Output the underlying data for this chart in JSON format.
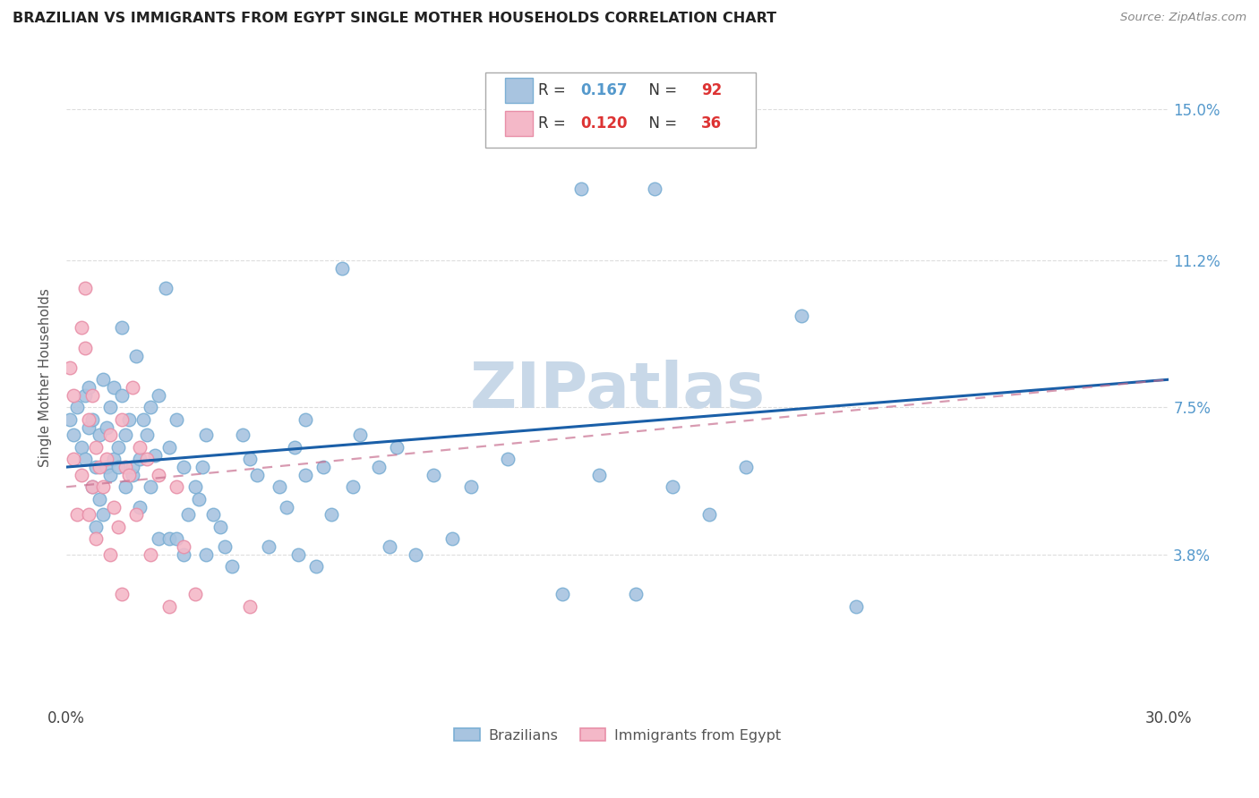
{
  "title": "BRAZILIAN VS IMMIGRANTS FROM EGYPT SINGLE MOTHER HOUSEHOLDS CORRELATION CHART",
  "source": "Source: ZipAtlas.com",
  "ylabel": "Single Mother Households",
  "ytick_labels": [
    "15.0%",
    "11.2%",
    "7.5%",
    "3.8%"
  ],
  "ytick_values": [
    0.15,
    0.112,
    0.075,
    0.038
  ],
  "xmin": 0.0,
  "xmax": 0.3,
  "ymin": 0.0,
  "ymax": 0.165,
  "R_blue": 0.167,
  "N_blue": 92,
  "R_pink": 0.12,
  "N_pink": 36,
  "blue_color": "#a8c4e0",
  "blue_edge": "#7bafd4",
  "pink_color": "#f4b8c8",
  "pink_edge": "#e88fa8",
  "line_blue": "#1a5fa8",
  "line_pink": "#c87090",
  "watermark_color": "#c8d8e8",
  "title_color": "#222222",
  "source_color": "#888888",
  "background_color": "#ffffff",
  "grid_color": "#dddddd",
  "right_label_color": "#5599cc",
  "legend_R_color_blue": "#5599cc",
  "legend_N_color_blue": "#dd3333",
  "legend_R_color_pink": "#dd3333",
  "legend_N_color_pink": "#dd3333",
  "blue_line_y0": 0.06,
  "blue_line_y1": 0.082,
  "pink_line_y0": 0.055,
  "pink_line_y1": 0.082,
  "blue_points": [
    [
      0.001,
      0.072
    ],
    [
      0.002,
      0.068
    ],
    [
      0.003,
      0.075
    ],
    [
      0.004,
      0.065
    ],
    [
      0.005,
      0.078
    ],
    [
      0.005,
      0.062
    ],
    [
      0.006,
      0.08
    ],
    [
      0.006,
      0.07
    ],
    [
      0.007,
      0.055
    ],
    [
      0.007,
      0.072
    ],
    [
      0.008,
      0.06
    ],
    [
      0.008,
      0.045
    ],
    [
      0.009,
      0.052
    ],
    [
      0.009,
      0.068
    ],
    [
      0.01,
      0.048
    ],
    [
      0.01,
      0.082
    ],
    [
      0.011,
      0.06
    ],
    [
      0.011,
      0.07
    ],
    [
      0.012,
      0.058
    ],
    [
      0.012,
      0.075
    ],
    [
      0.013,
      0.062
    ],
    [
      0.013,
      0.08
    ],
    [
      0.014,
      0.065
    ],
    [
      0.014,
      0.06
    ],
    [
      0.015,
      0.078
    ],
    [
      0.015,
      0.095
    ],
    [
      0.016,
      0.055
    ],
    [
      0.016,
      0.068
    ],
    [
      0.017,
      0.072
    ],
    [
      0.018,
      0.058
    ],
    [
      0.018,
      0.06
    ],
    [
      0.019,
      0.088
    ],
    [
      0.02,
      0.062
    ],
    [
      0.02,
      0.05
    ],
    [
      0.021,
      0.072
    ],
    [
      0.022,
      0.068
    ],
    [
      0.023,
      0.075
    ],
    [
      0.023,
      0.055
    ],
    [
      0.024,
      0.063
    ],
    [
      0.025,
      0.042
    ],
    [
      0.025,
      0.078
    ],
    [
      0.027,
      0.105
    ],
    [
      0.028,
      0.065
    ],
    [
      0.028,
      0.042
    ],
    [
      0.03,
      0.072
    ],
    [
      0.03,
      0.042
    ],
    [
      0.032,
      0.06
    ],
    [
      0.032,
      0.038
    ],
    [
      0.033,
      0.048
    ],
    [
      0.035,
      0.055
    ],
    [
      0.036,
      0.052
    ],
    [
      0.037,
      0.06
    ],
    [
      0.038,
      0.068
    ],
    [
      0.038,
      0.038
    ],
    [
      0.04,
      0.048
    ],
    [
      0.042,
      0.045
    ],
    [
      0.043,
      0.04
    ],
    [
      0.045,
      0.035
    ],
    [
      0.048,
      0.068
    ],
    [
      0.05,
      0.062
    ],
    [
      0.052,
      0.058
    ],
    [
      0.055,
      0.04
    ],
    [
      0.058,
      0.055
    ],
    [
      0.06,
      0.05
    ],
    [
      0.062,
      0.065
    ],
    [
      0.063,
      0.038
    ],
    [
      0.065,
      0.072
    ],
    [
      0.065,
      0.058
    ],
    [
      0.068,
      0.035
    ],
    [
      0.07,
      0.06
    ],
    [
      0.072,
      0.048
    ],
    [
      0.075,
      0.11
    ],
    [
      0.078,
      0.055
    ],
    [
      0.08,
      0.068
    ],
    [
      0.085,
      0.06
    ],
    [
      0.088,
      0.04
    ],
    [
      0.09,
      0.065
    ],
    [
      0.095,
      0.038
    ],
    [
      0.1,
      0.058
    ],
    [
      0.105,
      0.042
    ],
    [
      0.11,
      0.055
    ],
    [
      0.12,
      0.062
    ],
    [
      0.135,
      0.028
    ],
    [
      0.14,
      0.13
    ],
    [
      0.145,
      0.058
    ],
    [
      0.155,
      0.028
    ],
    [
      0.165,
      0.055
    ],
    [
      0.175,
      0.048
    ],
    [
      0.2,
      0.098
    ],
    [
      0.215,
      0.025
    ],
    [
      0.16,
      0.13
    ],
    [
      0.185,
      0.06
    ]
  ],
  "pink_points": [
    [
      0.001,
      0.085
    ],
    [
      0.002,
      0.062
    ],
    [
      0.002,
      0.078
    ],
    [
      0.003,
      0.048
    ],
    [
      0.004,
      0.095
    ],
    [
      0.004,
      0.058
    ],
    [
      0.005,
      0.105
    ],
    [
      0.005,
      0.09
    ],
    [
      0.006,
      0.072
    ],
    [
      0.006,
      0.048
    ],
    [
      0.007,
      0.078
    ],
    [
      0.007,
      0.055
    ],
    [
      0.008,
      0.065
    ],
    [
      0.008,
      0.042
    ],
    [
      0.009,
      0.06
    ],
    [
      0.01,
      0.055
    ],
    [
      0.011,
      0.062
    ],
    [
      0.012,
      0.068
    ],
    [
      0.012,
      0.038
    ],
    [
      0.013,
      0.05
    ],
    [
      0.014,
      0.045
    ],
    [
      0.015,
      0.072
    ],
    [
      0.015,
      0.028
    ],
    [
      0.016,
      0.06
    ],
    [
      0.017,
      0.058
    ],
    [
      0.018,
      0.08
    ],
    [
      0.019,
      0.048
    ],
    [
      0.02,
      0.065
    ],
    [
      0.022,
      0.062
    ],
    [
      0.023,
      0.038
    ],
    [
      0.025,
      0.058
    ],
    [
      0.028,
      0.025
    ],
    [
      0.03,
      0.055
    ],
    [
      0.032,
      0.04
    ],
    [
      0.035,
      0.028
    ],
    [
      0.05,
      0.025
    ]
  ]
}
